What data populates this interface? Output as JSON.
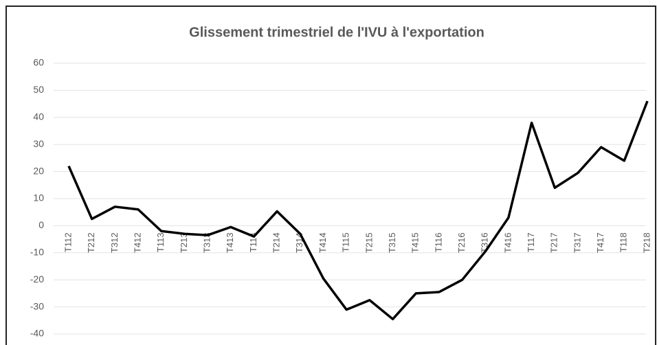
{
  "chart_data": {
    "type": "line",
    "title": "Glissement trimestriel de l'IVU à l'exportation",
    "categories": [
      "T112",
      "T212",
      "T312",
      "T412",
      "T113",
      "T213",
      "T313",
      "T413",
      "T114",
      "T214",
      "T314",
      "T414",
      "T115",
      "T215",
      "T315",
      "T415",
      "T116",
      "T216",
      "T316",
      "T416",
      "T117",
      "T217",
      "T317",
      "T417",
      "T118",
      "T218"
    ],
    "series": [
      {
        "name": "IVU",
        "color": "#000000",
        "values": [
          22,
          2.5,
          7,
          6,
          -2,
          -3,
          -3.5,
          -0.5,
          -4,
          5.3,
          -3,
          -19.5,
          -31,
          -27.5,
          -34.5,
          -25,
          -24.5,
          -20,
          -9.5,
          3,
          38,
          14,
          19.5,
          29,
          24,
          46
        ]
      }
    ],
    "ylim": [
      -40,
      60
    ],
    "yticks": [
      60,
      50,
      40,
      30,
      20,
      10,
      0,
      -10,
      -20,
      -30,
      -40
    ],
    "grid": true
  }
}
